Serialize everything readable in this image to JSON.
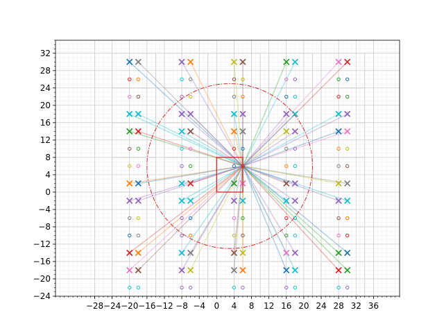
{
  "chart_data": {
    "type": "scatter",
    "title": "",
    "xlabel": "",
    "ylabel": "",
    "xlim": [
      -37,
      42
    ],
    "ylim": [
      -24,
      35
    ],
    "grid": true,
    "x_major_ticks": [
      -28,
      -24,
      -20,
      -16,
      -12,
      -8,
      -4,
      0,
      4,
      8,
      12,
      16,
      20,
      24,
      28,
      32,
      36
    ],
    "y_major_ticks": [
      -24,
      -20,
      -16,
      -12,
      -8,
      -4,
      0,
      4,
      8,
      12,
      16,
      20,
      24,
      28,
      32
    ],
    "rectangle": {
      "x0": 0,
      "y0": 0,
      "x1": 6,
      "y1": 8,
      "color": "#d62728"
    },
    "circle": {
      "cx": 3,
      "cy": 6,
      "r": 19,
      "color": "#d62728",
      "style": "dash-dot"
    },
    "hub": {
      "x": 6,
      "y": 6
    },
    "columns_x": [
      -20,
      -18,
      -8,
      -6,
      4,
      6,
      16,
      18,
      28,
      30
    ],
    "rows": [
      {
        "y": 30,
        "kind": "x"
      },
      {
        "y": 26,
        "kind": "o"
      },
      {
        "y": 22,
        "kind": "o"
      },
      {
        "y": 18,
        "kind": "x"
      },
      {
        "y": 14,
        "kind": "x"
      },
      {
        "y": 10,
        "kind": "o"
      },
      {
        "y": 6,
        "kind": "o"
      },
      {
        "y": 2,
        "kind": "x"
      },
      {
        "y": -2,
        "kind": "x"
      },
      {
        "y": -6,
        "kind": "o"
      },
      {
        "y": -10,
        "kind": "o"
      },
      {
        "y": -14,
        "kind": "x"
      },
      {
        "y": -18,
        "kind": "x"
      },
      {
        "y": -22,
        "kind": "o"
      }
    ],
    "palette": [
      "#1f77b4",
      "#ff7f0e",
      "#2ca02c",
      "#d62728",
      "#9467bd",
      "#8c564b",
      "#e377c2",
      "#7f7f7f",
      "#bcbd22",
      "#17becf"
    ],
    "grid_colors": {
      "major": "#bfbfbf",
      "minor": "#ececec",
      "block": "#d0d0d0"
    }
  }
}
